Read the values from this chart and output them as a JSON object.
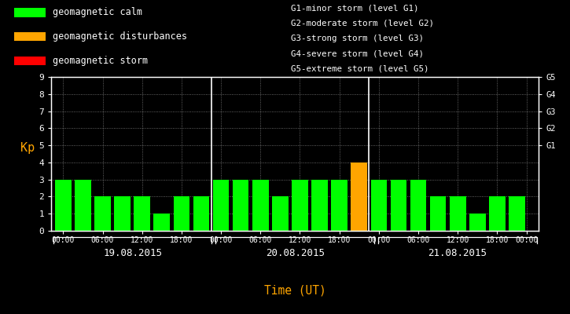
{
  "kp_values": [
    3,
    3,
    2,
    2,
    2,
    1,
    2,
    2,
    3,
    3,
    3,
    2,
    3,
    3,
    3,
    4,
    3,
    3,
    3,
    2,
    2,
    1,
    2,
    2
  ],
  "bar_colors": [
    "#00ff00",
    "#00ff00",
    "#00ff00",
    "#00ff00",
    "#00ff00",
    "#00ff00",
    "#00ff00",
    "#00ff00",
    "#00ff00",
    "#00ff00",
    "#00ff00",
    "#00ff00",
    "#00ff00",
    "#00ff00",
    "#00ff00",
    "#ffa500",
    "#00ff00",
    "#00ff00",
    "#00ff00",
    "#00ff00",
    "#00ff00",
    "#00ff00",
    "#00ff00",
    "#00ff00"
  ],
  "bg_color": "#000000",
  "plot_bg_color": "#000000",
  "text_color": "#ffffff",
  "orange_color": "#ffa500",
  "axis_color": "#ffffff",
  "grid_color": "#ffffff",
  "ylim": [
    0,
    9
  ],
  "yticks": [
    0,
    1,
    2,
    3,
    4,
    5,
    6,
    7,
    8,
    9
  ],
  "ylabel_left": "Kp",
  "xlabel": "Time (UT)",
  "day_labels": [
    "19.08.2015",
    "20.08.2015",
    "21.08.2015"
  ],
  "right_ytick_labels": [
    "G1",
    "G2",
    "G3",
    "G4",
    "G5"
  ],
  "right_ytick_positions": [
    5,
    6,
    7,
    8,
    9
  ],
  "legend_items": [
    {
      "label": "geomagnetic calm",
      "color": "#00ff00"
    },
    {
      "label": "geomagnetic disturbances",
      "color": "#ffa500"
    },
    {
      "label": "geomagnetic storm",
      "color": "#ff0000"
    }
  ],
  "storm_labels": [
    "G1-minor storm (level G1)",
    "G2-moderate storm (level G2)",
    "G3-strong storm (level G3)",
    "G4-severe storm (level G4)",
    "G5-extreme storm (level G5)"
  ],
  "title_font": "monospace",
  "bar_width": 0.82
}
